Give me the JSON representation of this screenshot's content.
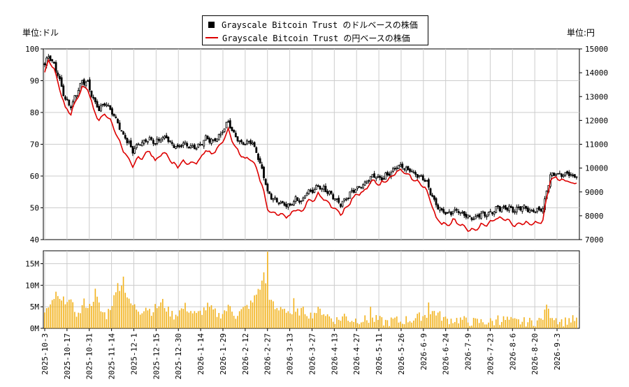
{
  "units": {
    "left": "単位:ドル",
    "right": "単位:円"
  },
  "legend": [
    {
      "label": "Grayscale Bitcoin Trust のドルベースの株価",
      "color": "#000000",
      "kind": "square"
    },
    {
      "label": "Grayscale Bitcoin Trust の円ベースの株価",
      "color": "#dd0000",
      "kind": "line"
    }
  ],
  "chart_data": [
    {
      "type": "candlestick+line",
      "y_left_ticks": [
        "100",
        "90",
        "80",
        "70",
        "60",
        "50",
        "40"
      ],
      "y_left_range": [
        40,
        100
      ],
      "y_right_ticks": [
        "15000",
        "14000",
        "13000",
        "12000",
        "11000",
        "10000",
        "9000",
        "8000",
        "7000"
      ],
      "y_right_range": [
        7000,
        15000
      ],
      "x_tick_labels": [
        "2025-10-3",
        "2025-10-17",
        "2025-10-31",
        "2025-11-14",
        "2025-12-1",
        "2025-12-15",
        "2025-12-30",
        "2026-1-14",
        "2026-1-29",
        "2026-2-12",
        "2026-2-27",
        "2026-3-13",
        "2026-3-27",
        "2026-4-13",
        "2026-4-27",
        "2026-5-11",
        "2026-5-26",
        "2026-6-9",
        "2026-6-24",
        "2026-7-9",
        "2026-7-23",
        "2026-8-6",
        "2026-8-20",
        "2026-9-3"
      ],
      "grid": true,
      "usd_close_keypoints": [
        [
          0,
          95
        ],
        [
          2,
          98
        ],
        [
          5,
          95
        ],
        [
          8,
          90
        ],
        [
          11,
          84
        ],
        [
          14,
          82
        ],
        [
          17,
          86
        ],
        [
          20,
          90
        ],
        [
          23,
          89
        ],
        [
          26,
          84
        ],
        [
          29,
          81
        ],
        [
          32,
          83
        ],
        [
          35,
          81
        ],
        [
          38,
          78
        ],
        [
          41,
          74
        ],
        [
          44,
          71
        ],
        [
          47,
          68
        ],
        [
          50,
          70
        ],
        [
          53,
          71
        ],
        [
          56,
          72
        ],
        [
          59,
          70
        ],
        [
          62,
          72
        ],
        [
          65,
          72
        ],
        [
          68,
          70
        ],
        [
          71,
          69
        ],
        [
          74,
          70
        ],
        [
          77,
          69
        ],
        [
          80,
          69
        ],
        [
          83,
          70
        ],
        [
          86,
          72
        ],
        [
          89,
          71
        ],
        [
          92,
          72
        ],
        [
          95,
          74
        ],
        [
          98,
          77
        ],
        [
          101,
          73
        ],
        [
          104,
          71
        ],
        [
          107,
          70
        ],
        [
          110,
          71
        ],
        [
          113,
          68
        ],
        [
          116,
          62
        ],
        [
          119,
          55
        ],
        [
          122,
          53
        ],
        [
          125,
          52
        ],
        [
          128,
          51
        ],
        [
          131,
          51
        ],
        [
          134,
          53
        ],
        [
          137,
          52
        ],
        [
          140,
          55
        ],
        [
          143,
          55
        ],
        [
          146,
          57
        ],
        [
          149,
          56
        ],
        [
          152,
          55
        ],
        [
          155,
          53
        ],
        [
          158,
          51
        ],
        [
          161,
          53
        ],
        [
          164,
          55
        ],
        [
          167,
          56
        ],
        [
          170,
          57
        ],
        [
          173,
          59
        ],
        [
          176,
          60
        ],
        [
          179,
          59
        ],
        [
          182,
          60
        ],
        [
          185,
          61
        ],
        [
          188,
          63
        ],
        [
          191,
          63
        ],
        [
          194,
          62
        ],
        [
          197,
          61
        ],
        [
          200,
          60
        ],
        [
          203,
          59
        ],
        [
          206,
          55
        ],
        [
          209,
          51
        ],
        [
          212,
          49
        ],
        [
          215,
          48
        ],
        [
          218,
          49
        ],
        [
          221,
          49
        ],
        [
          224,
          48
        ],
        [
          227,
          47
        ],
        [
          230,
          47
        ],
        [
          233,
          48
        ],
        [
          236,
          48
        ],
        [
          239,
          49
        ],
        [
          242,
          50
        ],
        [
          245,
          50
        ],
        [
          248,
          50
        ],
        [
          251,
          49
        ],
        [
          254,
          50
        ],
        [
          257,
          50
        ],
        [
          260,
          49
        ],
        [
          263,
          49
        ],
        [
          266,
          50
        ],
        [
          268,
          55
        ],
        [
          270,
          60
        ],
        [
          273,
          61
        ],
        [
          276,
          60
        ],
        [
          279,
          61
        ],
        [
          282,
          60
        ],
        [
          284,
          60
        ]
      ],
      "jpy_close_keypoints": [
        [
          0,
          14000
        ],
        [
          2,
          14500
        ],
        [
          5,
          14200
        ],
        [
          8,
          13300
        ],
        [
          11,
          12500
        ],
        [
          14,
          12300
        ],
        [
          17,
          12900
        ],
        [
          20,
          13400
        ],
        [
          23,
          13300
        ],
        [
          26,
          12500
        ],
        [
          29,
          12000
        ],
        [
          32,
          12300
        ],
        [
          35,
          12000
        ],
        [
          38,
          11500
        ],
        [
          41,
          10900
        ],
        [
          44,
          10500
        ],
        [
          47,
          10100
        ],
        [
          50,
          10400
        ],
        [
          53,
          10500
        ],
        [
          56,
          10700
        ],
        [
          59,
          10300
        ],
        [
          62,
          10600
        ],
        [
          65,
          10600
        ],
        [
          68,
          10200
        ],
        [
          71,
          10100
        ],
        [
          74,
          10300
        ],
        [
          77,
          10200
        ],
        [
          80,
          10200
        ],
        [
          83,
          10400
        ],
        [
          86,
          10800
        ],
        [
          89,
          10600
        ],
        [
          92,
          10800
        ],
        [
          95,
          11100
        ],
        [
          98,
          11600
        ],
        [
          101,
          11000
        ],
        [
          104,
          10600
        ],
        [
          107,
          10400
        ],
        [
          110,
          10400
        ],
        [
          113,
          10000
        ],
        [
          116,
          9300
        ],
        [
          119,
          8300
        ],
        [
          122,
          8100
        ],
        [
          125,
          8100
        ],
        [
          128,
          8000
        ],
        [
          131,
          8000
        ],
        [
          134,
          8300
        ],
        [
          137,
          8100
        ],
        [
          140,
          8600
        ],
        [
          143,
          8600
        ],
        [
          146,
          8900
        ],
        [
          149,
          8700
        ],
        [
          152,
          8500
        ],
        [
          155,
          8300
        ],
        [
          158,
          8100
        ],
        [
          161,
          8300
        ],
        [
          164,
          8700
        ],
        [
          167,
          8900
        ],
        [
          170,
          9000
        ],
        [
          173,
          9300
        ],
        [
          176,
          9500
        ],
        [
          179,
          9300
        ],
        [
          182,
          9500
        ],
        [
          185,
          9600
        ],
        [
          188,
          9900
        ],
        [
          191,
          9900
        ],
        [
          194,
          9700
        ],
        [
          197,
          9500
        ],
        [
          200,
          9400
        ],
        [
          203,
          9200
        ],
        [
          206,
          8600
        ],
        [
          209,
          7900
        ],
        [
          212,
          7700
        ],
        [
          215,
          7600
        ],
        [
          218,
          7800
        ],
        [
          221,
          7700
        ],
        [
          224,
          7500
        ],
        [
          227,
          7400
        ],
        [
          230,
          7400
        ],
        [
          233,
          7600
        ],
        [
          236,
          7600
        ],
        [
          239,
          7800
        ],
        [
          242,
          7900
        ],
        [
          245,
          7900
        ],
        [
          248,
          7800
        ],
        [
          251,
          7600
        ],
        [
          254,
          7700
        ],
        [
          257,
          7700
        ],
        [
          260,
          7700
        ],
        [
          263,
          7700
        ],
        [
          266,
          7800
        ],
        [
          268,
          8700
        ],
        [
          270,
          9500
        ],
        [
          273,
          9600
        ],
        [
          276,
          9500
        ],
        [
          279,
          9500
        ],
        [
          282,
          9300
        ],
        [
          284,
          9400
        ]
      ],
      "volume_keypoints": [
        [
          0,
          4
        ],
        [
          3,
          5
        ],
        [
          6,
          7
        ],
        [
          9,
          6
        ],
        [
          12,
          7
        ],
        [
          15,
          5
        ],
        [
          18,
          3
        ],
        [
          21,
          6
        ],
        [
          24,
          5
        ],
        [
          27,
          8
        ],
        [
          30,
          4
        ],
        [
          33,
          3
        ],
        [
          36,
          6
        ],
        [
          39,
          9
        ],
        [
          42,
          10
        ],
        [
          45,
          6
        ],
        [
          48,
          5
        ],
        [
          51,
          4
        ],
        [
          54,
          5
        ],
        [
          57,
          4
        ],
        [
          60,
          5
        ],
        [
          63,
          6
        ],
        [
          66,
          4
        ],
        [
          69,
          3
        ],
        [
          72,
          4
        ],
        [
          75,
          5
        ],
        [
          78,
          4
        ],
        [
          81,
          3
        ],
        [
          84,
          4
        ],
        [
          87,
          5
        ],
        [
          90,
          4
        ],
        [
          93,
          3
        ],
        [
          96,
          4
        ],
        [
          99,
          5
        ],
        [
          102,
          3
        ],
        [
          105,
          4
        ],
        [
          108,
          5
        ],
        [
          111,
          6
        ],
        [
          114,
          9
        ],
        [
          117,
          11
        ],
        [
          119,
          9
        ],
        [
          121,
          6
        ],
        [
          124,
          4
        ],
        [
          127,
          5
        ],
        [
          130,
          4
        ],
        [
          133,
          3
        ],
        [
          136,
          4
        ],
        [
          139,
          4
        ],
        [
          142,
          3
        ],
        [
          145,
          4
        ],
        [
          148,
          4
        ],
        [
          151,
          3
        ],
        [
          154,
          2
        ],
        [
          157,
          2
        ],
        [
          160,
          3
        ],
        [
          163,
          2
        ],
        [
          166,
          2
        ],
        [
          169,
          2
        ],
        [
          172,
          2
        ],
        [
          175,
          2
        ],
        [
          178,
          2
        ],
        [
          181,
          1.5
        ],
        [
          184,
          1.5
        ],
        [
          187,
          2
        ],
        [
          190,
          1.5
        ],
        [
          193,
          2
        ],
        [
          196,
          2
        ],
        [
          199,
          2.5
        ],
        [
          202,
          3
        ],
        [
          205,
          3
        ],
        [
          208,
          4
        ],
        [
          211,
          3
        ],
        [
          214,
          2
        ],
        [
          217,
          2
        ],
        [
          220,
          2
        ],
        [
          223,
          2
        ],
        [
          226,
          1.5
        ],
        [
          229,
          1.5
        ],
        [
          232,
          1.5
        ],
        [
          235,
          1.5
        ],
        [
          238,
          1.5
        ],
        [
          241,
          1.5
        ],
        [
          244,
          2
        ],
        [
          247,
          2
        ],
        [
          250,
          1.5
        ],
        [
          253,
          1.5
        ],
        [
          256,
          1.5
        ],
        [
          259,
          1.5
        ],
        [
          262,
          1.5
        ],
        [
          265,
          2
        ],
        [
          268,
          4
        ],
        [
          271,
          3
        ],
        [
          274,
          2
        ],
        [
          277,
          1.5
        ],
        [
          280,
          2
        ],
        [
          284,
          2
        ]
      ],
      "volume_spikes": [
        [
          6,
          8.5
        ],
        [
          27,
          9.2
        ],
        [
          39,
          10.5
        ],
        [
          42,
          12
        ],
        [
          117,
          13
        ],
        [
          119,
          17.8
        ],
        [
          133,
          7
        ],
        [
          174,
          5
        ],
        [
          205,
          6
        ],
        [
          242,
          3
        ],
        [
          268,
          5.5
        ]
      ],
      "volume_ticks": [
        "15M",
        "10M",
        "5M",
        "0M"
      ],
      "volume_range": [
        0,
        18
      ]
    }
  ]
}
